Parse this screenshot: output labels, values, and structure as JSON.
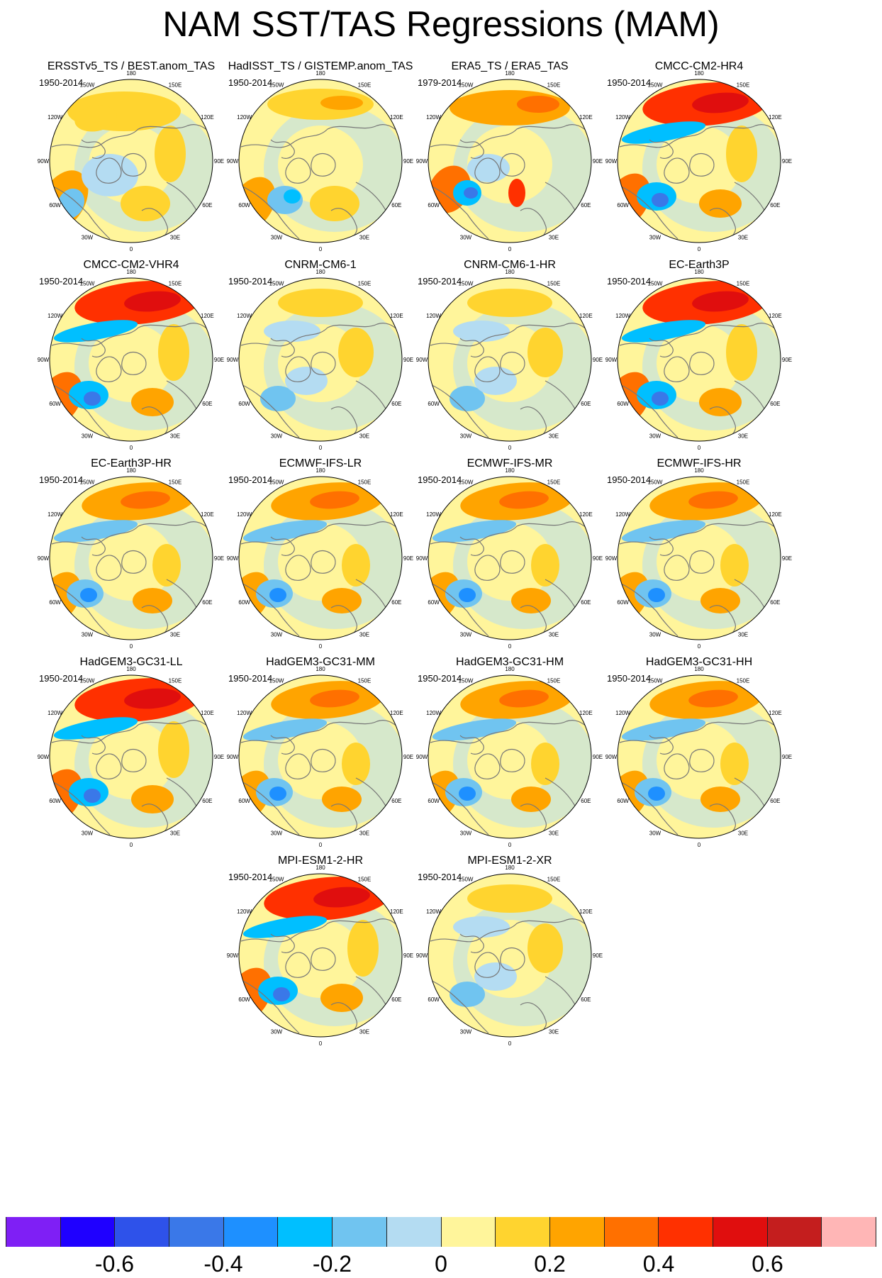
{
  "title": "NAM SST/TAS Regressions (MAM)",
  "longitude_labels": {
    "lon_180": "180",
    "lon_150E": "150E",
    "lon_120E": "120E",
    "lon_90E": "90E",
    "lon_60E": "60E",
    "lon_30E": "30E",
    "lon_0": "0",
    "lon_30W": "30W",
    "lon_60W": "60W",
    "lon_90W": "90W",
    "lon_120W": "120W",
    "lon_150W": "150W"
  },
  "panels": [
    {
      "title": "ERSSTv5_TS / BEST.anom_TAS",
      "period": "1950-2014",
      "pattern": "obs1"
    },
    {
      "title": "HadISST_TS / GISTEMP.anom_TAS",
      "period": "1950-2014",
      "pattern": "obs2"
    },
    {
      "title": "ERA5_TS / ERA5_TAS",
      "period": "1979-2014",
      "pattern": "obs3"
    },
    {
      "title": "CMCC-CM2-HR4",
      "period": "1950-2014",
      "pattern": "strong"
    },
    {
      "title": "CMCC-CM2-VHR4",
      "period": "1950-2014",
      "pattern": "strong"
    },
    {
      "title": "CNRM-CM6-1",
      "period": "1950-2014",
      "pattern": "weak"
    },
    {
      "title": "CNRM-CM6-1-HR",
      "period": "1950-2014",
      "pattern": "weak"
    },
    {
      "title": "EC-Earth3P",
      "period": "1950-2014",
      "pattern": "strong"
    },
    {
      "title": "EC-Earth3P-HR",
      "period": "1950-2014",
      "pattern": "moderate"
    },
    {
      "title": "ECMWF-IFS-LR",
      "period": "1950-2014",
      "pattern": "moderate"
    },
    {
      "title": "ECMWF-IFS-MR",
      "period": "1950-2014",
      "pattern": "moderate"
    },
    {
      "title": "ECMWF-IFS-HR",
      "period": "1950-2014",
      "pattern": "moderate"
    },
    {
      "title": "HadGEM3-GC31-LL",
      "period": "1950-2014",
      "pattern": "strong"
    },
    {
      "title": "HadGEM3-GC31-MM",
      "period": "1950-2014",
      "pattern": "moderate"
    },
    {
      "title": "HadGEM3-GC31-HM",
      "period": "1950-2014",
      "pattern": "moderate"
    },
    {
      "title": "HadGEM3-GC31-HH",
      "period": "1950-2014",
      "pattern": "moderate"
    },
    {
      "title": "MPI-ESM1-2-HR",
      "period": "1950-2014",
      "pattern": "strong"
    },
    {
      "title": "MPI-ESM1-2-XR",
      "period": "1950-2014",
      "pattern": "weak"
    }
  ],
  "colorbar": {
    "colors": [
      "#7f1ff5",
      "#1f00ff",
      "#2e52ea",
      "#3a78e8",
      "#1e90ff",
      "#00bfff",
      "#70c4f0",
      "#b4dcf2",
      "#fff59b",
      "#ffd42f",
      "#ffa400",
      "#ff7000",
      "#ff3000",
      "#e00e0e",
      "#c41e1e",
      "#ffb6b6"
    ],
    "ticks": [
      {
        "value": -0.6,
        "label": "-0.6"
      },
      {
        "value": -0.4,
        "label": "-0.4"
      },
      {
        "value": -0.2,
        "label": "-0.2"
      },
      {
        "value": 0,
        "label": "0"
      },
      {
        "value": 0.2,
        "label": "0.2"
      },
      {
        "value": 0.4,
        "label": "0.4"
      },
      {
        "value": 0.6,
        "label": "0.6"
      }
    ],
    "range": [
      -0.8,
      0.8
    ]
  }
}
